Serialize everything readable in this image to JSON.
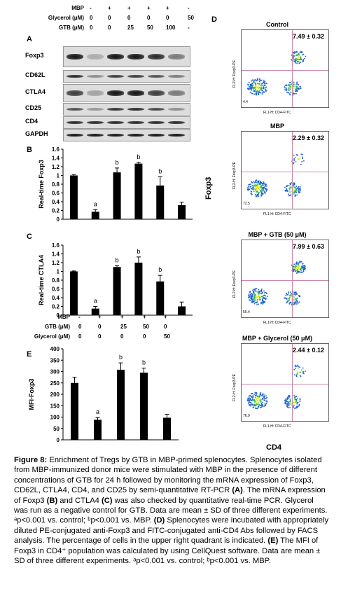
{
  "figure": {
    "panel_a": {
      "letter": "A",
      "header_rows": [
        {
          "label": "MBP",
          "values": [
            "-",
            "+",
            "+",
            "+",
            "+",
            "-"
          ]
        },
        {
          "label": "Glycerol (μM)",
          "values": [
            "0",
            "0",
            "0",
            "0",
            "0",
            "50"
          ]
        },
        {
          "label": "GTB (μM)",
          "values": [
            "0",
            "0",
            "25",
            "50",
            "100",
            "-"
          ]
        }
      ],
      "genes": [
        "Foxp3",
        "CD62L",
        "CTLA4",
        "CD25",
        "CD4",
        "GAPDH"
      ]
    },
    "panel_d": {
      "letter": "D",
      "y_label": "Foxp3",
      "x_label": "CD4",
      "plots": [
        {
          "title": "Control",
          "percent": "7.49 ± 0.32",
          "ll": "4.4"
        },
        {
          "title": "MBP",
          "percent": "2.29 ± 0.32",
          "ll": "72.5"
        },
        {
          "title": "MBP + GTB (50 μM)",
          "percent": "7.99 ± 0.63",
          "ll": "55.4"
        },
        {
          "title": "MBP + Glycerol (50 μM)",
          "percent": "2.44 ± 0.12",
          "ll": "76.9"
        }
      ],
      "axis_y_text": "FL2-H: Foxp3-PE",
      "axis_x_text": "FL1-H: CD4-FITC"
    },
    "panel_e_header": [
      {
        "label": "MBP",
        "values": [
          "-",
          "+",
          "+",
          "+",
          "+"
        ]
      },
      {
        "label": "GTB (μM)",
        "values": [
          "0",
          "0",
          "25",
          "50",
          "0"
        ]
      },
      {
        "label": "Glycerol (μM)",
        "values": [
          "0",
          "0",
          "0",
          "0",
          "50"
        ]
      }
    ]
  },
  "chart_data": [
    {
      "type": "bar",
      "panel": "B",
      "ylabel": "Real-time Foxp3",
      "ylim": [
        0,
        1.6
      ],
      "yticks": [
        "0",
        "0.2",
        "0.4",
        "0.6",
        "0.8",
        "1",
        "1.2",
        "1.4",
        "1.6"
      ],
      "values": [
        1.0,
        0.17,
        1.07,
        1.27,
        0.77,
        0.32
      ],
      "errors": [
        0.02,
        0.05,
        0.1,
        0.03,
        0.2,
        0.07
      ],
      "annotations": [
        "",
        "a",
        "b",
        "b",
        "b",
        ""
      ]
    },
    {
      "type": "bar",
      "panel": "C",
      "ylabel": "Real-time CTLA4",
      "ylim": [
        0,
        1.6
      ],
      "yticks": [
        "0",
        "0.2",
        "0.4",
        "0.6",
        "0.8",
        "1",
        "1.2",
        "1.4",
        "1.6"
      ],
      "values": [
        1.0,
        0.15,
        1.1,
        1.2,
        0.77,
        0.2
      ],
      "errors": [
        0.01,
        0.05,
        0.03,
        0.13,
        0.14,
        0.1
      ],
      "annotations": [
        "",
        "a",
        "b",
        "b",
        "b",
        ""
      ]
    },
    {
      "type": "bar",
      "panel": "E",
      "ylabel": "MFI-Foxp3",
      "ylim": [
        0,
        400
      ],
      "yticks": [
        "0",
        "50",
        "100",
        "150",
        "200",
        "250",
        "300",
        "350",
        "400"
      ],
      "values": [
        250,
        88,
        308,
        295,
        97
      ],
      "errors": [
        25,
        10,
        30,
        20,
        15
      ],
      "annotations": [
        "",
        "a",
        "b",
        "b",
        ""
      ]
    }
  ],
  "caption": {
    "fig_label": "Figure 8:",
    "p1": " Enrichment of Tregs by GTB in MBP-primed splenocytes. Splenocytes isolated from MBP-immunized donor mice were stimulated with MBP in the presence of different concentrations of GTB for 24 h followed by monitoring the mRNA expression of Foxp3, CD62L, CTLA4, CD4, and CD25 by semi-quantitative RT-PCR ",
    "a": "(A)",
    "p2": ". The mRNA expression of Foxp3 ",
    "b": "(B)",
    "p3": " and CTLA4 ",
    "c": "(C)",
    "p4": " was also checked by quantitative real-time PCR. Glycerol was run as a negative control for GTB. Data are mean ± SD of three different experiments. ",
    "sig1": "ᵃp<0.001 vs. control; ᵇp<0.001 vs. MBP. ",
    "d": "(D)",
    "p5": " Splenocytes were incubated with appropriately diluted PE-conjugated anti-Foxp3 and FITC-conjugated anti-CD4 Abs followed by FACS analysis. The percentage of cells in the upper right quadrant is indicated. ",
    "e": "(E)",
    "p6": " The MFI of Foxp3 in CD4⁺ population was calculated by using CellQuest software. Data are mean ± SD of three different experiments. ",
    "sig2": "ᵃp<0.001 vs. control; ᵇp<0.001 vs. MBP."
  }
}
